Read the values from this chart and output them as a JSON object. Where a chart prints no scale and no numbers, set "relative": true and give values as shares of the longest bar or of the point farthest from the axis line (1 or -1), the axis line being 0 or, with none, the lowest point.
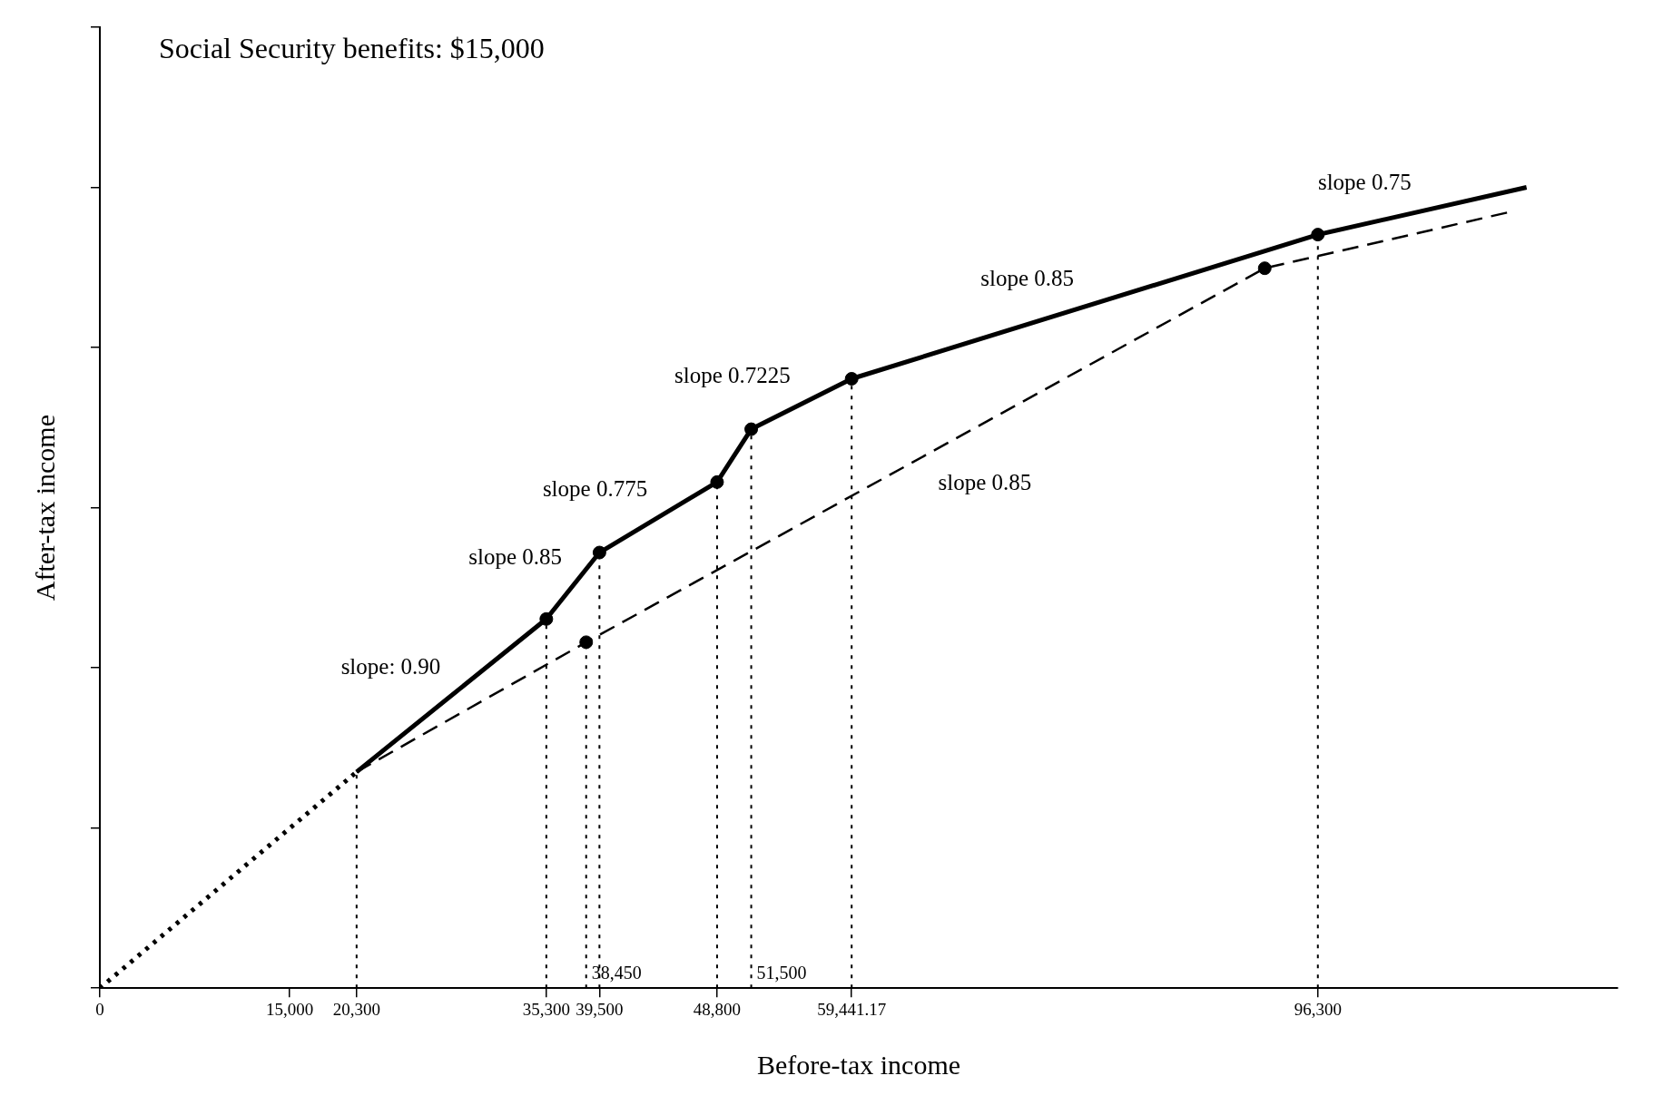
{
  "chart_data": {
    "type": "line",
    "title": "Social Security benefits: $15,000",
    "xlabel": "Before-tax income",
    "ylabel": "After-tax income",
    "relative": true,
    "xlim": [
      0,
      120000
    ],
    "xticks": [
      0,
      {
        "value": 15000,
        "label": "15,000"
      },
      {
        "value": 20300,
        "label": "20,300"
      },
      {
        "value": 35300,
        "label": "35,300"
      },
      {
        "value": 39500,
        "label": "39,500"
      },
      {
        "value": 48800,
        "label": "48,800"
      },
      {
        "value": 59441.17,
        "label": "59,441.17"
      },
      {
        "value": 96300,
        "label": "96,300"
      }
    ],
    "series": [
      {
        "line_style": "dotted",
        "marker": "none",
        "color": "#000000",
        "x": [
          0,
          20300
        ],
        "values": [
          0,
          0.27
        ]
      },
      {
        "line_style": "solid",
        "marker": "none",
        "color": "#000000",
        "x": [
          20300,
          35300,
          39500,
          48800,
          51500,
          59441.17,
          96300,
          112800
        ],
        "values": [
          0.27,
          0.461,
          0.544,
          0.632,
          0.698,
          0.761,
          0.941,
          1
        ]
      },
      {
        "line_style": "dashed",
        "marker": "none",
        "color": "#000000",
        "x": [
          20300,
          38450,
          92100,
          111400
        ],
        "values": [
          0.27,
          0.432,
          0.899,
          0.969
        ]
      },
      {
        "type": "scatter",
        "marker": "circle",
        "color": "#000000",
        "x": [
          35300,
          39500,
          48800,
          51500,
          59441.17,
          96300,
          38450,
          92100
        ],
        "values": [
          0.461,
          0.544,
          0.632,
          0.698,
          0.761,
          0.941,
          0.432,
          0.899
        ]
      }
    ],
    "ref_lines": [
      {
        "axis": "x",
        "value": 20300,
        "line_style": "dotted"
      },
      {
        "axis": "x",
        "value": 35300,
        "line_style": "dotted"
      },
      {
        "axis": "x",
        "value": 38450,
        "line_style": "dotted",
        "label": "38,450"
      },
      {
        "axis": "x",
        "value": 39500,
        "line_style": "dotted"
      },
      {
        "axis": "x",
        "value": 48800,
        "line_style": "dotted"
      },
      {
        "axis": "x",
        "value": 51500,
        "line_style": "dotted",
        "label": "51,500"
      },
      {
        "axis": "x",
        "value": 59441.17,
        "line_style": "dotted"
      },
      {
        "axis": "x",
        "value": 96300,
        "line_style": "dotted"
      }
    ],
    "annotations": [
      {
        "text": "slope: 0.90",
        "x": 27800,
        "y": 0.3655
      },
      {
        "text": "slope 0.85",
        "x": 37400,
        "y": 0.5025
      },
      {
        "text": "slope 0.775",
        "x": 44150,
        "y": 0.588
      },
      {
        "text": "slope 0.7225",
        "x": 55470,
        "y": 0.7295
      },
      {
        "text": "slope 0.85",
        "x": 77870,
        "y": 0.851
      },
      {
        "text": "slope 0.75",
        "x": 104550,
        "y": 0.9705
      },
      {
        "text": "slope 0.85",
        "x": 65275,
        "y": 0.6655
      }
    ],
    "tick_labels": "x",
    "grid": false,
    "legend": false
  }
}
